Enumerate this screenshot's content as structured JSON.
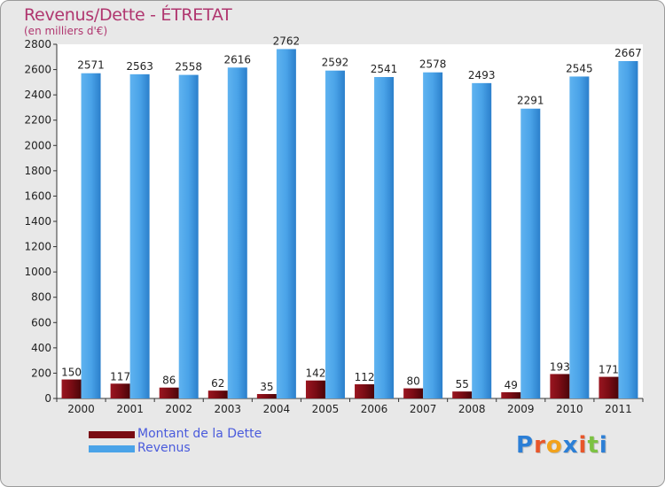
{
  "header": {
    "title": "Revenus/Dette - ÉTRETAT",
    "subtitle": "(en milliers d'€)"
  },
  "colors": {
    "dette": "#7a0c14",
    "revenus": "#4aa3e8",
    "title": "#b0366f",
    "legend_text": "#4a5bdc"
  },
  "legend": {
    "items": [
      {
        "label": "Montant de la Dette",
        "color": "#7a0c14"
      },
      {
        "label": "Revenus",
        "color": "#4aa3e8"
      }
    ]
  },
  "brand": {
    "letters": [
      "P",
      "r",
      "o",
      "x",
      "i",
      "t",
      "i"
    ],
    "colors": [
      "#2c7fd6",
      "#e8562a",
      "#f2a21b",
      "#2c7fd6",
      "#e8562a",
      "#7cc242",
      "#2c7fd6"
    ]
  },
  "chart_data": {
    "type": "bar",
    "title": "Revenus/Dette - ÉTRETAT",
    "subtitle": "(en milliers d'€)",
    "xlabel": "",
    "ylabel": "",
    "ylim": [
      0,
      2800
    ],
    "yticks": [
      0,
      200,
      400,
      600,
      800,
      1000,
      1200,
      1400,
      1600,
      1800,
      2000,
      2200,
      2400,
      2600,
      2800
    ],
    "grid": false,
    "legend_position": "bottom-left",
    "categories": [
      "2000",
      "2001",
      "2002",
      "2003",
      "2004",
      "2005",
      "2006",
      "2007",
      "2008",
      "2009",
      "2010",
      "2011"
    ],
    "series": [
      {
        "name": "Montant de la Dette",
        "values": [
          150,
          117,
          86,
          62,
          35,
          142,
          112,
          80,
          55,
          49,
          193,
          171
        ]
      },
      {
        "name": "Revenus",
        "values": [
          2571,
          2563,
          2558,
          2616,
          2762,
          2592,
          2541,
          2578,
          2493,
          2291,
          2545,
          2667
        ]
      }
    ]
  }
}
